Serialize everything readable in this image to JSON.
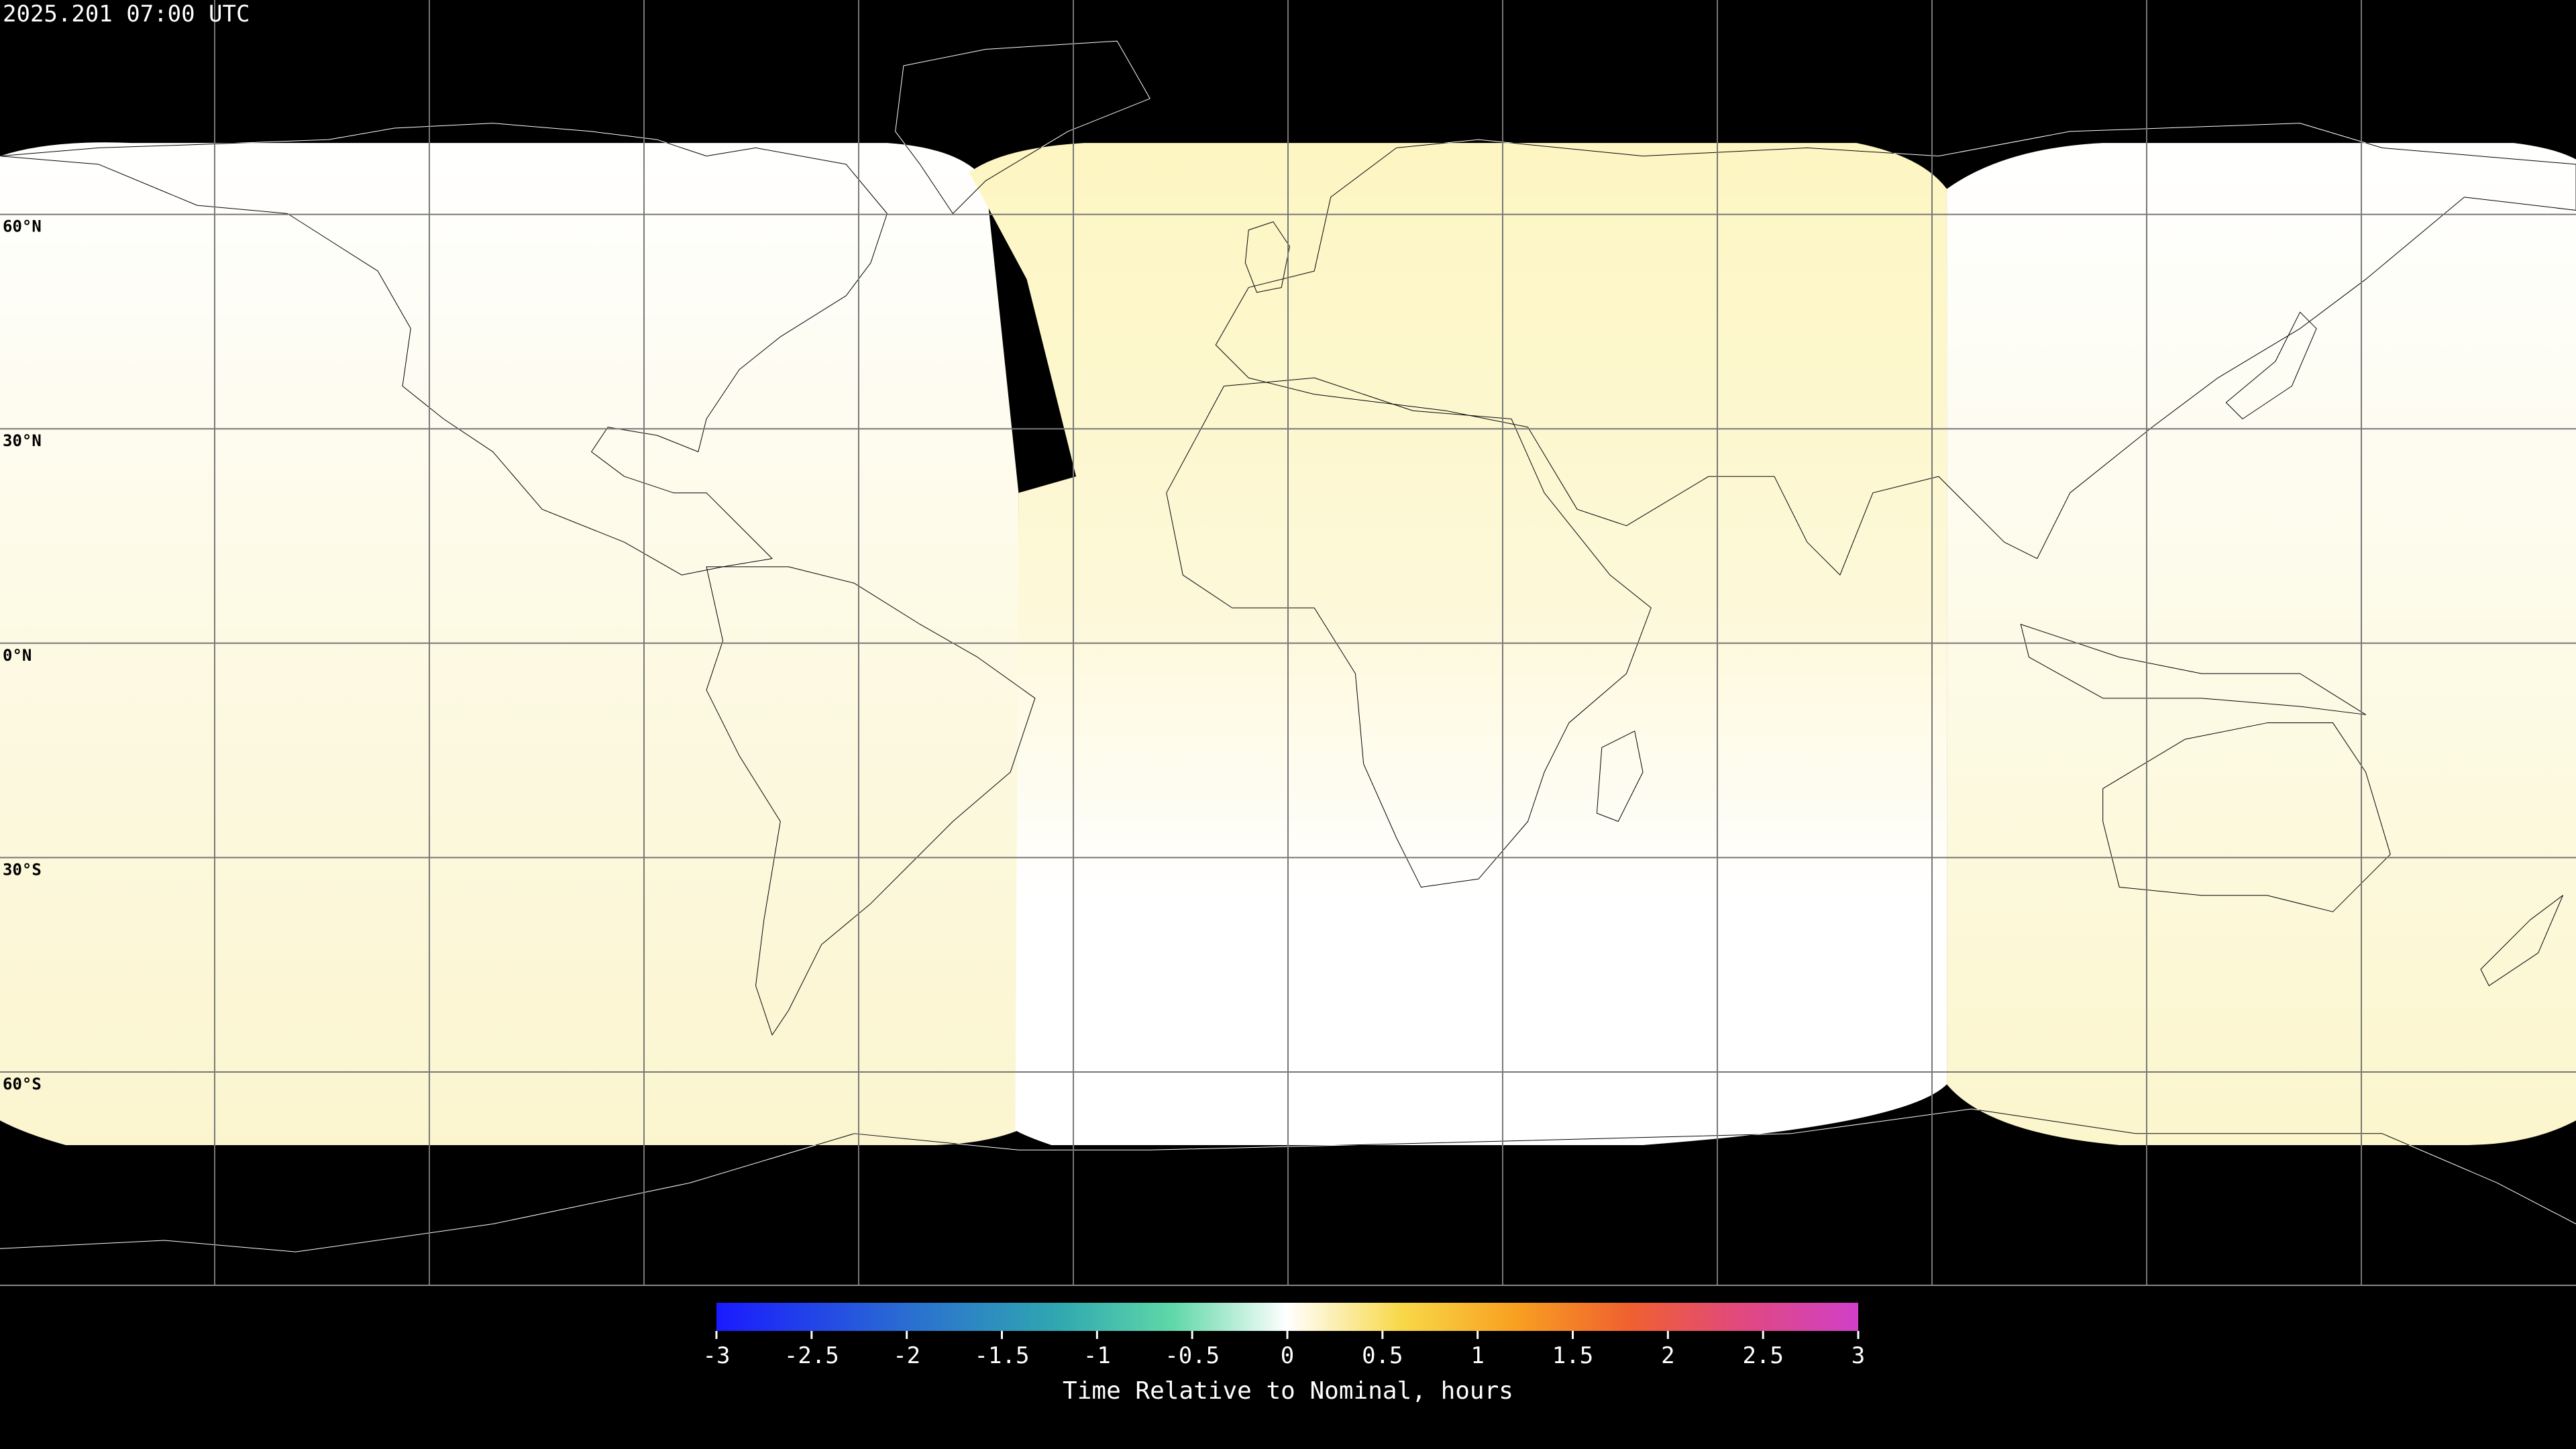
{
  "header": {
    "timestamp": "2025.201 07:00 UTC"
  },
  "map": {
    "lat_labels": [
      "60°N",
      "30°N",
      "0°N",
      "30°S",
      "60°S"
    ]
  },
  "colorbar": {
    "label": "Time Relative to Nominal, hours",
    "lim": [
      -3,
      3
    ],
    "ticks": [
      -3,
      -2.5,
      -2,
      -1.5,
      -1,
      -0.5,
      0,
      0.5,
      1,
      1.5,
      2,
      2.5,
      3
    ]
  }
}
